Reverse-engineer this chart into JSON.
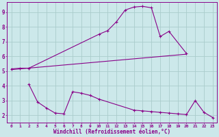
{
  "bg_color": "#cce8ea",
  "grid_color": "#aacccc",
  "line_color": "#880088",
  "xlabel": "Windchill (Refroidissement éolien,°C)",
  "xlim": [
    -0.5,
    23.5
  ],
  "ylim": [
    1.5,
    9.7
  ],
  "yticks": [
    2,
    3,
    4,
    5,
    6,
    7,
    8,
    9
  ],
  "xticks": [
    0,
    1,
    2,
    3,
    4,
    5,
    6,
    7,
    8,
    9,
    10,
    11,
    12,
    13,
    14,
    15,
    16,
    17,
    18,
    19,
    20,
    21,
    22,
    23
  ],
  "line1_x": [
    0,
    1,
    2,
    10,
    11,
    12,
    13,
    14,
    15,
    16,
    17,
    18,
    20
  ],
  "line1_y": [
    5.15,
    5.2,
    5.2,
    7.5,
    7.75,
    8.35,
    9.15,
    9.35,
    9.4,
    9.3,
    7.35,
    7.7,
    6.2
  ],
  "line2_x": [
    0,
    20
  ],
  "line2_y": [
    5.1,
    6.15
  ],
  "line3_x": [
    2,
    3,
    4,
    5,
    6,
    7,
    8,
    9,
    10,
    14,
    15,
    16,
    17,
    18,
    19,
    20,
    21,
    22,
    23
  ],
  "line3_y": [
    4.1,
    2.9,
    2.5,
    2.15,
    2.1,
    3.6,
    3.5,
    3.35,
    3.1,
    2.35,
    2.3,
    2.25,
    2.2,
    2.15,
    2.1,
    2.05,
    3.0,
    2.2,
    1.85
  ]
}
